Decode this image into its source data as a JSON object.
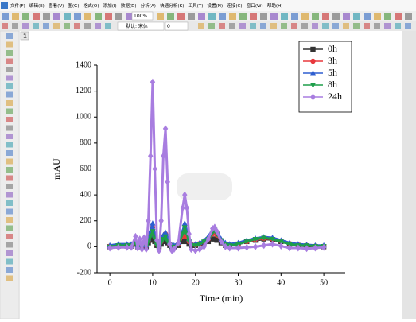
{
  "menu": [
    "文件(F)",
    "编辑(E)",
    "查看(V)",
    "图(G)",
    "格式(O)",
    "添加(I)",
    "数据(D)",
    "分析(A)",
    "快速分析(K)",
    "工具(T)",
    "设置(N)",
    "连接(C)",
    "窗口(W)",
    "帮助(H)"
  ],
  "toolbar": {
    "zoom": "100%",
    "font": "默认: 宋体",
    "size": "0",
    "page_tab": "1"
  },
  "chart_data": {
    "type": "line",
    "x_label": "Time (min)",
    "y_label": "mAU",
    "x": [
      0,
      2,
      4,
      5,
      6,
      6.5,
      7,
      7.5,
      8,
      8.5,
      9,
      9.5,
      10,
      10.5,
      11,
      11.5,
      12,
      12.5,
      13,
      13.5,
      14,
      14.5,
      15,
      16,
      17,
      17.5,
      18,
      18.5,
      19,
      20,
      21,
      22,
      23,
      24,
      24.5,
      25,
      26,
      27,
      28,
      30,
      32,
      34,
      36,
      38,
      40,
      42,
      44,
      46,
      48,
      50
    ],
    "series": [
      {
        "name": "0h",
        "color": "#333333",
        "marker": "square",
        "values": [
          0,
          5,
          5,
          5,
          20,
          0,
          10,
          0,
          20,
          0,
          30,
          50,
          80,
          40,
          10,
          0,
          20,
          40,
          50,
          30,
          10,
          0,
          0,
          10,
          40,
          50,
          40,
          20,
          10,
          10,
          20,
          30,
          40,
          60,
          60,
          50,
          30,
          10,
          10,
          20,
          40,
          50,
          60,
          55,
          40,
          20,
          10,
          5,
          0,
          0
        ]
      },
      {
        "name": "3h",
        "color": "#e8383d",
        "marker": "circle",
        "values": [
          5,
          10,
          10,
          15,
          30,
          5,
          20,
          5,
          30,
          5,
          50,
          100,
          150,
          80,
          20,
          5,
          40,
          80,
          100,
          60,
          20,
          5,
          5,
          20,
          80,
          100,
          80,
          40,
          20,
          15,
          25,
          40,
          60,
          100,
          110,
          90,
          50,
          20,
          15,
          20,
          40,
          55,
          65,
          60,
          45,
          25,
          15,
          10,
          5,
          5
        ]
      },
      {
        "name": "5h",
        "color": "#2f5fd0",
        "marker": "triangle-up",
        "values": [
          10,
          20,
          20,
          20,
          40,
          10,
          30,
          10,
          40,
          10,
          60,
          120,
          180,
          90,
          30,
          10,
          50,
          90,
          110,
          70,
          30,
          10,
          10,
          30,
          120,
          180,
          120,
          60,
          20,
          20,
          30,
          50,
          80,
          130,
          150,
          120,
          60,
          30,
          20,
          30,
          50,
          65,
          75,
          70,
          50,
          30,
          20,
          15,
          10,
          10
        ]
      },
      {
        "name": "8h",
        "color": "#1e9e4a",
        "marker": "triangle-down",
        "values": [
          0,
          10,
          10,
          10,
          30,
          0,
          20,
          0,
          30,
          0,
          40,
          80,
          120,
          60,
          10,
          0,
          30,
          60,
          80,
          40,
          10,
          0,
          0,
          20,
          100,
          150,
          100,
          40,
          10,
          10,
          20,
          40,
          60,
          110,
          130,
          100,
          50,
          20,
          10,
          20,
          40,
          60,
          70,
          60,
          40,
          20,
          10,
          10,
          5,
          5
        ]
      },
      {
        "name": "24h",
        "color": "#a87de0",
        "marker": "diamond",
        "values": [
          -10,
          -5,
          -5,
          -5,
          80,
          -10,
          60,
          -20,
          70,
          -20,
          200,
          700,
          1270,
          600,
          50,
          -30,
          200,
          700,
          910,
          500,
          20,
          -30,
          -20,
          30,
          300,
          400,
          300,
          100,
          -20,
          -30,
          -20,
          0,
          60,
          140,
          150,
          120,
          40,
          0,
          -10,
          -10,
          -5,
          0,
          10,
          20,
          5,
          -10,
          -10,
          -15,
          -10,
          -5
        ]
      }
    ],
    "xlim": [
      -3,
      55
    ],
    "xticks": [
      0,
      10,
      20,
      30,
      40,
      50
    ],
    "ylim": [
      -200,
      1400
    ],
    "yticks": [
      -200,
      0,
      200,
      400,
      600,
      800,
      1000,
      1200,
      1400
    ],
    "legend": "upper right"
  }
}
